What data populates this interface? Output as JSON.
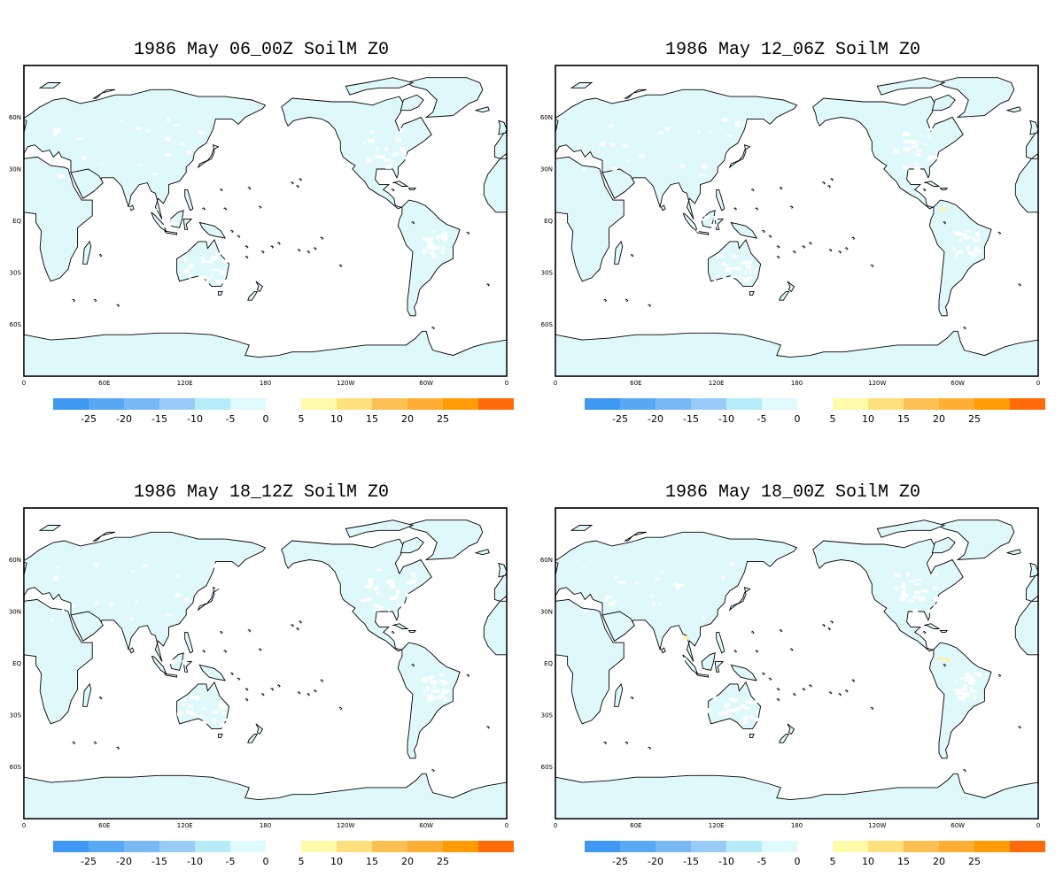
{
  "panels": [
    {
      "title": "1986 May 06_00Z SoilM Z0",
      "warm_spots": []
    },
    {
      "title": "1986 May 12_06Z SoilM Z0",
      "warm_spots": [
        {
          "lon": 289,
          "lat": 7
        }
      ]
    },
    {
      "title": "1986 May 18_12Z SoilM Z0",
      "warm_spots": []
    },
    {
      "title": "1986 May 18_00Z SoilM Z0",
      "warm_spots": [
        {
          "lon": 97,
          "lat": 15
        },
        {
          "lon": 287,
          "lat": 3
        },
        {
          "lon": 292,
          "lat": 2
        }
      ]
    }
  ],
  "map": {
    "lon_range": [
      0,
      360
    ],
    "lat_range": [
      -90,
      90
    ],
    "lat_labels": [
      {
        "lat": 60,
        "text": "60N"
      },
      {
        "lat": 30,
        "text": "30N"
      },
      {
        "lat": 0,
        "text": "EQ"
      },
      {
        "lat": -30,
        "text": "30S"
      },
      {
        "lat": -60,
        "text": "60S"
      }
    ],
    "lon_labels": [
      {
        "lon": 0,
        "text": "0"
      },
      {
        "lon": 60,
        "text": "60E"
      },
      {
        "lon": 120,
        "text": "120E"
      },
      {
        "lon": 180,
        "text": "180"
      },
      {
        "lon": 240,
        "text": "120W"
      },
      {
        "lon": 300,
        "text": "60W"
      },
      {
        "lon": 360,
        "text": "0"
      }
    ]
  },
  "colorbar": {
    "negative_colors": [
      "#3f98f2",
      "#59a8f4",
      "#78b8f5",
      "#98cbf7",
      "#b6ecf7",
      "#dffbfe"
    ],
    "negative_labels": [
      "-25",
      "-20",
      "-15",
      "-10",
      "-5",
      "0"
    ],
    "positive_colors": [
      "#fffbaa",
      "#fee07c",
      "#fdc052",
      "#feae33",
      "#fe9b06",
      "#fe6a0a"
    ],
    "positive_labels": [
      "5",
      "10",
      "15",
      "20",
      "25"
    ]
  }
}
